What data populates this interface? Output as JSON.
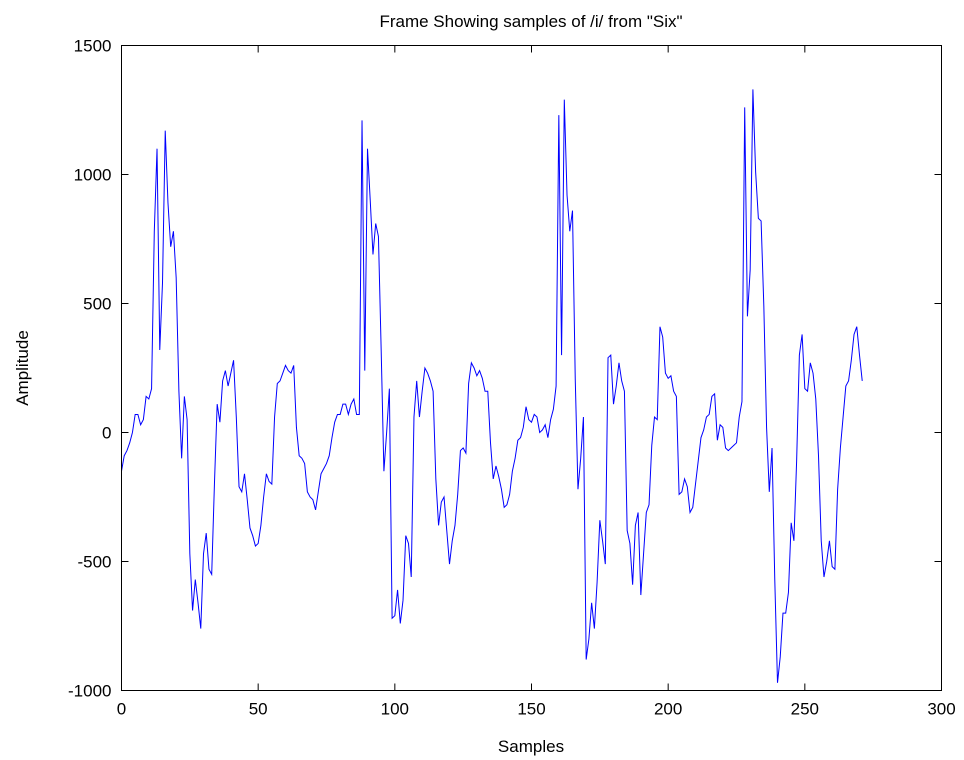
{
  "chart_data": {
    "type": "line",
    "title": "Frame Showing samples of /i/ from \"Six\"",
    "xlabel": "Samples",
    "ylabel": "Amplitude",
    "xlim": [
      0,
      300
    ],
    "ylim": [
      -1000,
      1500
    ],
    "xticks": [
      0,
      50,
      100,
      150,
      200,
      250,
      300
    ],
    "yticks": [
      -1000,
      -500,
      0,
      500,
      1000,
      1500
    ],
    "xtick_labels": [
      "0",
      "50",
      "100",
      "150",
      "200",
      "250",
      "300"
    ],
    "ytick_labels": [
      "-1000",
      "-500",
      "0",
      "500",
      "1000",
      "1500"
    ],
    "grid": false,
    "legend": "none",
    "line_color": "#0000ff",
    "series": [
      {
        "values": [
          -150,
          -90,
          -70,
          -40,
          0,
          70,
          70,
          30,
          50,
          140,
          130,
          170,
          780,
          1100,
          320,
          580,
          1170,
          890,
          720,
          780,
          600,
          160,
          -100,
          140,
          50,
          -470,
          -690,
          -570,
          -660,
          -760,
          -470,
          -390,
          -530,
          -550,
          -200,
          110,
          40,
          200,
          240,
          180,
          230,
          280,
          60,
          -210,
          -230,
          -160,
          -260,
          -370,
          -400,
          -440,
          -430,
          -360,
          -250,
          -160,
          -190,
          -200,
          60,
          190,
          200,
          230,
          260,
          240,
          230,
          260,
          20,
          -90,
          -100,
          -120,
          -230,
          -250,
          -260,
          -300,
          -230,
          -160,
          -140,
          -120,
          -90,
          -20,
          40,
          70,
          70,
          110,
          110,
          70,
          110,
          130,
          70,
          70,
          1210,
          240,
          1100,
          900,
          690,
          810,
          760,
          320,
          -150,
          0,
          170,
          -720,
          -710,
          -610,
          -740,
          -650,
          -400,
          -430,
          -560,
          60,
          200,
          60,
          160,
          250,
          230,
          200,
          160,
          -180,
          -360,
          -270,
          -250,
          -380,
          -510,
          -420,
          -360,
          -240,
          -70,
          -60,
          -80,
          190,
          270,
          250,
          220,
          240,
          210,
          160,
          160,
          -40,
          -180,
          -130,
          -170,
          -220,
          -290,
          -280,
          -240,
          -150,
          -100,
          -30,
          -20,
          20,
          100,
          50,
          40,
          70,
          60,
          0,
          10,
          30,
          -20,
          50,
          90,
          180,
          1230,
          300,
          1290,
          920,
          780,
          860,
          210,
          -220,
          -100,
          60,
          -880,
          -800,
          -660,
          -760,
          -580,
          -340,
          -420,
          -510,
          290,
          300,
          110,
          180,
          270,
          200,
          160,
          -380,
          -430,
          -590,
          -360,
          -310,
          -630,
          -470,
          -310,
          -280,
          -50,
          60,
          50,
          410,
          370,
          230,
          210,
          220,
          160,
          140,
          -240,
          -230,
          -180,
          -210,
          -310,
          -290,
          -200,
          -110,
          -20,
          10,
          60,
          70,
          140,
          150,
          -30,
          30,
          20,
          -60,
          -70,
          -60,
          -50,
          -40,
          60,
          120,
          1260,
          450,
          630,
          1330,
          1010,
          830,
          820,
          490,
          20,
          -230,
          -60,
          -570,
          -970,
          -870,
          -700,
          -700,
          -620,
          -350,
          -420,
          -110,
          300,
          380,
          170,
          160,
          270,
          230,
          130,
          -90,
          -420,
          -560,
          -500,
          -420,
          -520,
          -530,
          -220,
          -60,
          60,
          180,
          200,
          280,
          380,
          410,
          300,
          200
        ]
      }
    ]
  }
}
